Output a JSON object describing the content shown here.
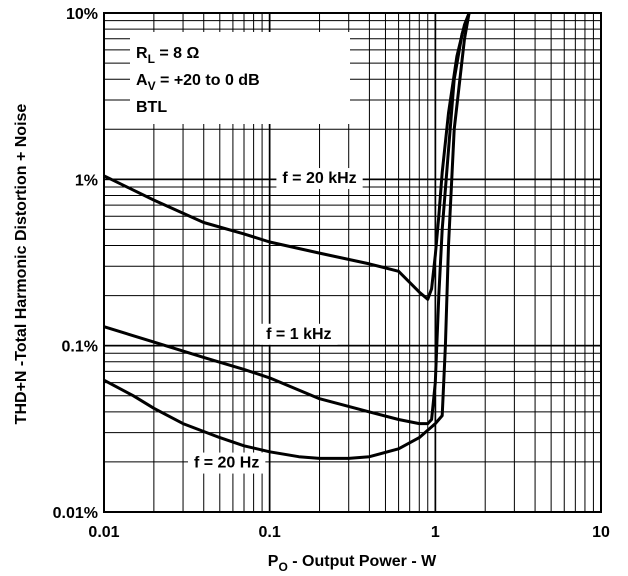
{
  "chart_data": {
    "type": "line",
    "x_scale": "log",
    "y_scale": "log",
    "xlim": [
      0.01,
      10
    ],
    "ylim": [
      0.01,
      10
    ],
    "grid": true,
    "xlabel_parts": {
      "main": "P",
      "sub": "O",
      "rest": " - Output Power - W"
    },
    "ylabel": "THD+N -Total Harmonic Distortion + Noise",
    "x_ticks": [
      {
        "value": 0.01,
        "label": "0.01"
      },
      {
        "value": 0.1,
        "label": "0.1"
      },
      {
        "value": 1,
        "label": "1"
      },
      {
        "value": 10,
        "label": "10"
      }
    ],
    "y_ticks": [
      {
        "value": 0.01,
        "label": "0.01%"
      },
      {
        "value": 0.1,
        "label": "0.1%"
      },
      {
        "value": 1,
        "label": "1%"
      },
      {
        "value": 10,
        "label": "10%"
      }
    ],
    "conditions": [
      {
        "main": "R",
        "sub": "L",
        "rest": " = 8 Ω"
      },
      {
        "main": "A",
        "sub": "V",
        "rest": " = +20 to 0 dB"
      },
      {
        "main": "BTL",
        "sub": "",
        "rest": ""
      }
    ],
    "series": [
      {
        "label": "f = 20 kHz",
        "x": [
          0.01,
          0.02,
          0.04,
          0.07,
          0.1,
          0.2,
          0.4,
          0.6,
          0.8,
          0.9,
          0.95,
          1.0,
          1.05,
          1.1,
          1.2,
          1.35,
          1.5,
          1.6
        ],
        "y": [
          1.05,
          0.75,
          0.55,
          0.47,
          0.42,
          0.36,
          0.31,
          0.28,
          0.21,
          0.19,
          0.22,
          0.35,
          0.6,
          1.1,
          2.5,
          5.5,
          8.5,
          10
        ]
      },
      {
        "label": "f = 1 kHz",
        "x": [
          0.01,
          0.02,
          0.04,
          0.07,
          0.1,
          0.2,
          0.4,
          0.6,
          0.8,
          0.9,
          0.95,
          1.0,
          1.05,
          1.1,
          1.2,
          1.3,
          1.45,
          1.6
        ],
        "y": [
          0.13,
          0.105,
          0.085,
          0.072,
          0.064,
          0.048,
          0.04,
          0.036,
          0.034,
          0.034,
          0.036,
          0.06,
          0.2,
          0.5,
          1.5,
          4.0,
          7.5,
          10
        ]
      },
      {
        "label": "f = 20 Hz",
        "x": [
          0.01,
          0.015,
          0.02,
          0.03,
          0.05,
          0.07,
          0.1,
          0.15,
          0.2,
          0.3,
          0.4,
          0.6,
          0.8,
          1.0,
          1.1,
          1.15,
          1.2,
          1.3,
          1.5,
          1.6
        ],
        "y": [
          0.062,
          0.05,
          0.042,
          0.034,
          0.028,
          0.025,
          0.023,
          0.0215,
          0.021,
          0.021,
          0.0215,
          0.024,
          0.028,
          0.034,
          0.038,
          0.1,
          0.4,
          2.0,
          7.0,
          10
        ]
      }
    ],
    "annotations": [
      {
        "text": "f = 20 kHz",
        "x": 0.2,
        "y": 0.95
      },
      {
        "text": "f = 1 kHz",
        "x": 0.15,
        "y": 0.11
      },
      {
        "text": "f = 20 Hz",
        "x": 0.055,
        "y": 0.0185
      }
    ]
  }
}
